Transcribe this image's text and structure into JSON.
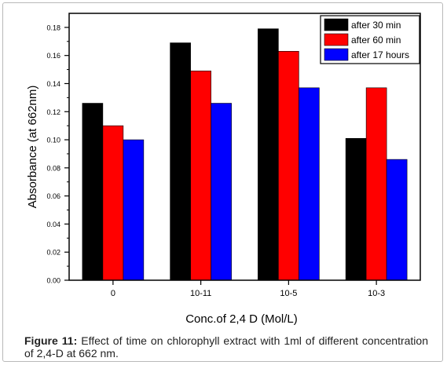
{
  "chart_data": {
    "type": "bar",
    "categories": [
      "0",
      "10-11",
      "10-5",
      "10-3"
    ],
    "series": [
      {
        "name": "after 30 min",
        "color": "#000000",
        "values": [
          0.126,
          0.169,
          0.179,
          0.101
        ]
      },
      {
        "name": "after 60 min",
        "color": "#ff0000",
        "values": [
          0.11,
          0.149,
          0.163,
          0.137
        ]
      },
      {
        "name": "after 17 hours",
        "color": "#0000ff",
        "values": [
          0.1,
          0.126,
          0.137,
          0.086
        ]
      }
    ],
    "xlabel": "Conc.of 2,4 D (Mol/L)",
    "ylabel": "Absorbance (at 662nm)",
    "ylim": [
      0,
      0.19
    ],
    "yticks": [
      "0.00",
      "0.02",
      "0.04",
      "0.06",
      "0.08",
      "0.10",
      "0.12",
      "0.14",
      "0.16",
      "0.18"
    ],
    "legend": "top-right",
    "grid": false
  },
  "caption": {
    "label": "Figure 11:",
    "text": " Effect of time on chlorophyll extract with 1ml of different concentration of 2,4-D at 662 nm."
  }
}
